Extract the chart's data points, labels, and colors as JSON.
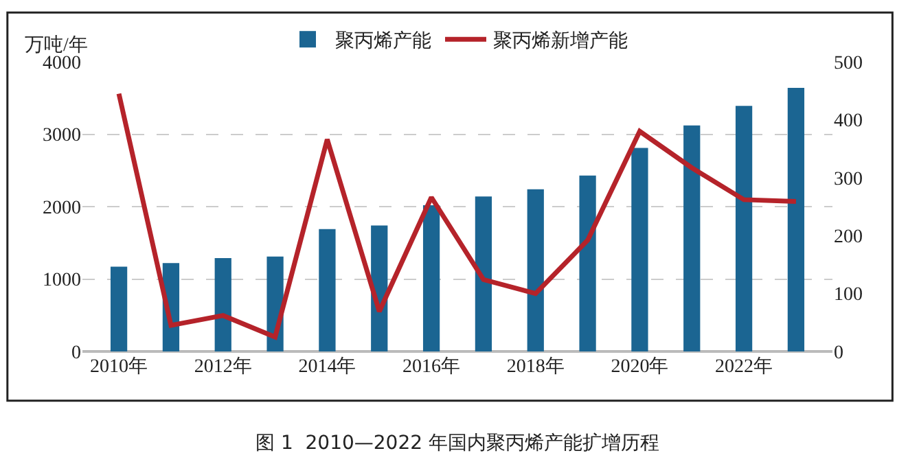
{
  "chart_data": {
    "type": "bar",
    "ylabel": "万吨/年",
    "categories": [
      "2010年",
      null,
      "2012年",
      null,
      "2014年",
      null,
      "2016年",
      null,
      "2018年",
      null,
      "2020年",
      null,
      "2022年",
      null
    ],
    "series": [
      {
        "name": "聚丙烯产能",
        "color": "#1b6592",
        "values": [
          1170,
          1220,
          1290,
          1310,
          1690,
          1740,
          2020,
          2140,
          2240,
          2430,
          2810,
          3120,
          3390,
          3640
        ]
      },
      {
        "name": "聚丙烯新增产能",
        "type": "line",
        "axis": "y2",
        "color": "#b5232a",
        "values": [
          445,
          45,
          62,
          25,
          366,
          69,
          266,
          124,
          100,
          192,
          380,
          317,
          262,
          259
        ]
      }
    ],
    "ylim": [
      0,
      4000
    ],
    "yticks": [
      0,
      1000,
      2000,
      3000,
      4000
    ],
    "y2lim": [
      0,
      500
    ],
    "y2ticks": [
      0,
      100,
      200,
      300,
      400,
      500
    ],
    "grid": "y",
    "legend": "top",
    "marker": "none",
    "line_style": "solid",
    "annotations": [
      "图 1  2010—2022 年国内聚丙烯产能扩增历程"
    ]
  }
}
